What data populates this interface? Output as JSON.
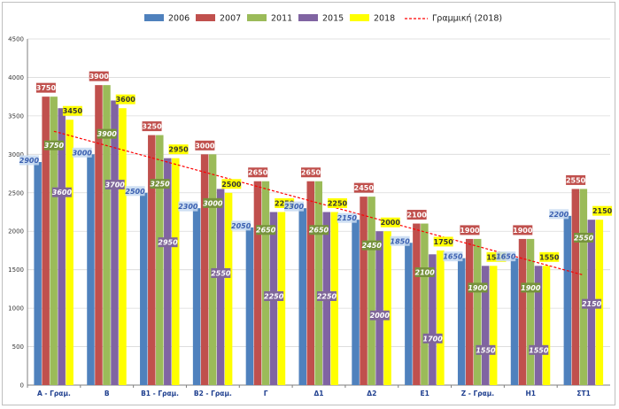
{
  "chart_data": {
    "type": "bar",
    "categories": [
      "A - Γραμ.",
      "B",
      "B1 - Γραμ.",
      "B2 - Γραμ.",
      "Γ",
      "Δ1",
      "Δ2",
      "E1",
      "Z - Γραμ.",
      "H1",
      "ΣT1"
    ],
    "series": [
      {
        "name": "2006",
        "color": "#4f81bd",
        "values": [
          2900,
          3000,
          2500,
          2300,
          2050,
          2300,
          2150,
          1850,
          1650,
          1650,
          2200
        ]
      },
      {
        "name": "2007",
        "color": "#c0504d",
        "values": [
          3750,
          3900,
          3250,
          3000,
          2650,
          2650,
          2450,
          2100,
          1900,
          1900,
          2550
        ]
      },
      {
        "name": "2011",
        "color": "#9bbb59",
        "values": [
          3750,
          3900,
          3250,
          3000,
          2650,
          2650,
          2450,
          2100,
          1900,
          1900,
          2550
        ]
      },
      {
        "name": "2015",
        "color": "#8064a2",
        "values": [
          3600,
          3700,
          2950,
          2550,
          2250,
          2250,
          2000,
          1700,
          1550,
          1550,
          2150
        ]
      },
      {
        "name": "2018",
        "color": "#ffff00",
        "values": [
          3450,
          3600,
          2950,
          2500,
          2250,
          2250,
          2000,
          1750,
          1550,
          1550,
          2150
        ]
      }
    ],
    "trendline": {
      "name": "Γραμμική (2018)",
      "color": "#ff0000",
      "style": "dashed",
      "start": 3300,
      "end": 1430
    },
    "ylim": [
      0,
      4500
    ],
    "yticks": [
      0,
      500,
      1000,
      1500,
      2000,
      2500,
      3000,
      3500,
      4000,
      4500
    ],
    "grid": true,
    "legend_position": "top"
  }
}
